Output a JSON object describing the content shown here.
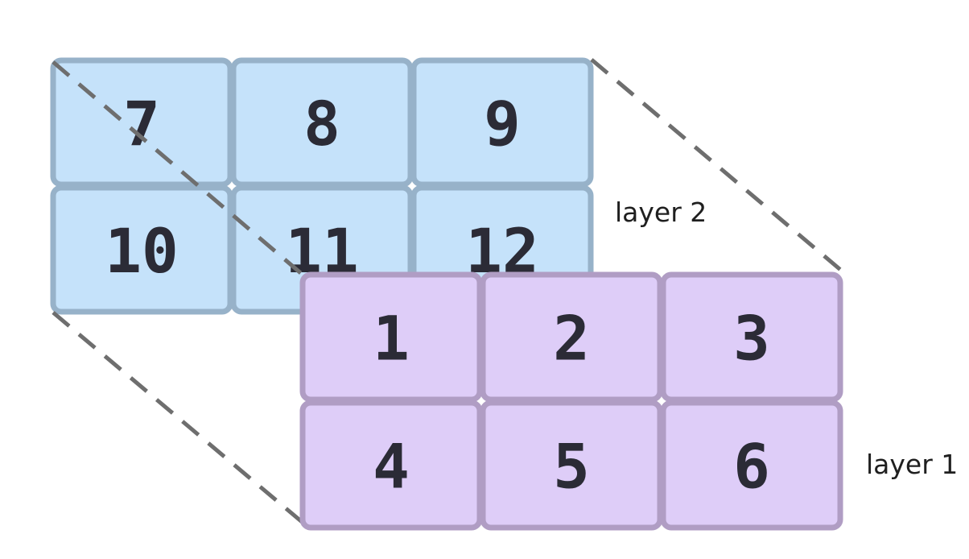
{
  "layers": [
    {
      "label": "layer 2",
      "fill": "#c5e2fa",
      "stroke": "#97b2c9",
      "rows": [
        [
          "7",
          "8",
          "9"
        ],
        [
          "10",
          "11",
          "12"
        ]
      ]
    },
    {
      "label": "layer 1",
      "fill": "#decdf8",
      "stroke": "#b09dc4",
      "rows": [
        [
          "1",
          "2",
          "3"
        ],
        [
          "4",
          "5",
          "6"
        ]
      ]
    }
  ],
  "guide_line_color": "#6e6e6e"
}
